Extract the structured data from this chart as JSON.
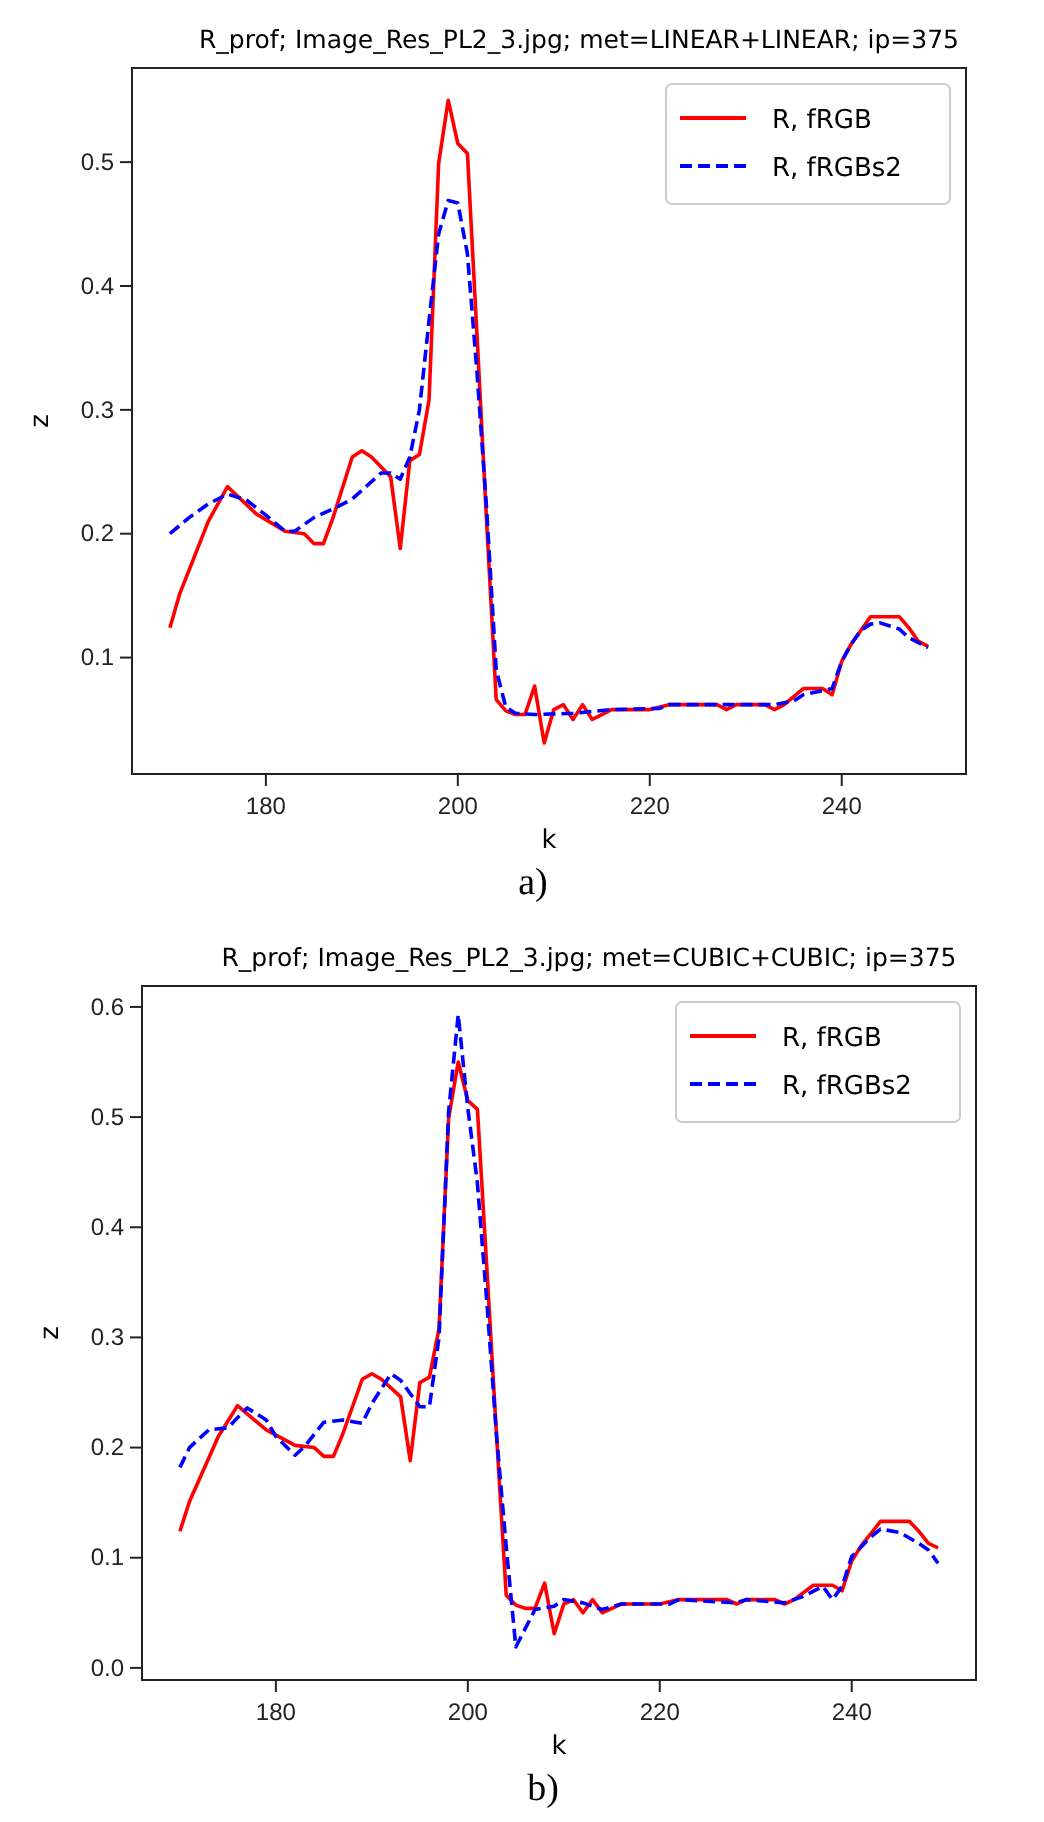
{
  "chart_data": [
    {
      "type": "line",
      "title": "R_prof; Image_Res_PL2_3.jpg; met=LINEAR+LINEAR; ip=375",
      "xlabel": "k",
      "ylabel": "z",
      "annotations": [
        "a)"
      ],
      "xlim": [
        166.05,
        252.95
      ],
      "xticks": [
        180,
        200,
        220,
        240
      ],
      "ylim": [
        0.006,
        0.576
      ],
      "yticks": [
        0.1,
        0.2,
        0.3,
        0.4,
        0.5
      ],
      "legend": "top right",
      "grid": false,
      "series": [
        {
          "name": "R, fRGB",
          "color": "#ff0000",
          "line_style": "solid",
          "x": [
            170,
            171,
            174,
            176,
            179,
            182,
            184,
            185,
            186,
            187,
            189,
            190,
            191,
            193,
            194,
            195,
            196,
            197,
            198,
            199,
            200,
            201,
            202,
            203,
            204,
            205,
            206,
            207,
            208,
            209,
            210,
            211,
            212,
            213,
            214,
            215,
            216,
            220,
            222,
            227,
            228,
            229,
            232,
            233,
            234,
            236,
            238,
            239,
            240,
            241,
            243,
            246,
            247,
            248,
            249
          ],
          "values": [
            0.124,
            0.151,
            0.21,
            0.238,
            0.216,
            0.202,
            0.2,
            0.192,
            0.192,
            0.213,
            0.262,
            0.267,
            0.262,
            0.246,
            0.188,
            0.259,
            0.264,
            0.308,
            0.499,
            0.55,
            0.515,
            0.507,
            0.36,
            0.21,
            0.066,
            0.057,
            0.054,
            0.054,
            0.077,
            0.031,
            0.058,
            0.062,
            0.05,
            0.062,
            0.05,
            0.054,
            0.058,
            0.058,
            0.062,
            0.062,
            0.058,
            0.062,
            0.062,
            0.058,
            0.062,
            0.075,
            0.075,
            0.07,
            0.097,
            0.111,
            0.133,
            0.133,
            0.124,
            0.113,
            0.109
          ]
        },
        {
          "name": "R, fRGBs2",
          "color": "#0000ff",
          "line_style": "dashed",
          "x": [
            170,
            172,
            174,
            176,
            178,
            180,
            182,
            183,
            185,
            187,
            189,
            192,
            193,
            194,
            195,
            196,
            197,
            198,
            199,
            200,
            201,
            202,
            203,
            204,
            205,
            206,
            208,
            212,
            216,
            221,
            222,
            228,
            233,
            235,
            236,
            239,
            240,
            241,
            242,
            243,
            244,
            246,
            247,
            249
          ],
          "values": [
            0.2,
            0.213,
            0.224,
            0.232,
            0.227,
            0.215,
            0.202,
            0.202,
            0.213,
            0.22,
            0.228,
            0.249,
            0.249,
            0.244,
            0.262,
            0.3,
            0.372,
            0.442,
            0.469,
            0.467,
            0.426,
            0.33,
            0.22,
            0.09,
            0.06,
            0.055,
            0.054,
            0.055,
            0.058,
            0.059,
            0.062,
            0.062,
            0.062,
            0.065,
            0.07,
            0.075,
            0.097,
            0.111,
            0.122,
            0.127,
            0.128,
            0.123,
            0.116,
            0.108
          ]
        }
      ]
    },
    {
      "type": "line",
      "title": "R_prof; Image_Res_PL2_3.jpg; met=CUBIC+CUBIC; ip=375",
      "xlabel": "k",
      "ylabel": "z",
      "annotations": [
        "b)"
      ],
      "xlim": [
        166.05,
        252.95
      ],
      "xticks": [
        180,
        200,
        220,
        240
      ],
      "ylim": [
        -0.011,
        0.619
      ],
      "yticks": [
        {
          "value": 0,
          "label": "0.0"
        },
        0.1,
        0.2,
        0.3,
        0.4,
        0.5,
        0.6
      ],
      "legend": "top right",
      "grid": false,
      "series": [
        {
          "name": "R, fRGB",
          "color": "#ff0000",
          "line_style": "solid",
          "x": [
            170,
            171,
            174,
            176,
            179,
            182,
            184,
            185,
            186,
            187,
            189,
            190,
            191,
            193,
            194,
            195,
            196,
            197,
            198,
            199,
            200,
            201,
            202,
            203,
            204,
            205,
            206,
            207,
            208,
            209,
            210,
            211,
            212,
            213,
            214,
            215,
            216,
            220,
            222,
            227,
            228,
            229,
            232,
            233,
            234,
            236,
            238,
            239,
            240,
            241,
            243,
            246,
            247,
            248,
            249
          ],
          "values": [
            0.124,
            0.151,
            0.21,
            0.238,
            0.216,
            0.202,
            0.2,
            0.192,
            0.192,
            0.213,
            0.262,
            0.267,
            0.262,
            0.246,
            0.188,
            0.259,
            0.264,
            0.308,
            0.499,
            0.55,
            0.515,
            0.507,
            0.36,
            0.21,
            0.066,
            0.057,
            0.054,
            0.054,
            0.077,
            0.031,
            0.058,
            0.062,
            0.05,
            0.062,
            0.05,
            0.054,
            0.058,
            0.058,
            0.062,
            0.062,
            0.058,
            0.062,
            0.062,
            0.058,
            0.062,
            0.075,
            0.075,
            0.07,
            0.097,
            0.111,
            0.133,
            0.133,
            0.124,
            0.113,
            0.109
          ]
        },
        {
          "name": "R, fRGBs2",
          "color": "#0000ff",
          "line_style": "dashed",
          "x": [
            170,
            171,
            173,
            175,
            177,
            179,
            180,
            182,
            183,
            185,
            187,
            189,
            190,
            192,
            193,
            195,
            196,
            197,
            198,
            199,
            200,
            201,
            202,
            203,
            204,
            205,
            207,
            209,
            210,
            212,
            214,
            216,
            221,
            222,
            228,
            229,
            233,
            235,
            237,
            238,
            239,
            240,
            242,
            243,
            245,
            247,
            248,
            249
          ],
          "values": [
            0.182,
            0.2,
            0.216,
            0.218,
            0.236,
            0.225,
            0.21,
            0.193,
            0.201,
            0.223,
            0.225,
            0.222,
            0.24,
            0.267,
            0.261,
            0.237,
            0.237,
            0.3,
            0.505,
            0.593,
            0.508,
            0.44,
            0.33,
            0.21,
            0.11,
            0.019,
            0.053,
            0.056,
            0.062,
            0.059,
            0.053,
            0.058,
            0.058,
            0.062,
            0.059,
            0.062,
            0.059,
            0.065,
            0.074,
            0.062,
            0.074,
            0.101,
            0.119,
            0.126,
            0.123,
            0.113,
            0.107,
            0.095
          ]
        }
      ]
    }
  ]
}
